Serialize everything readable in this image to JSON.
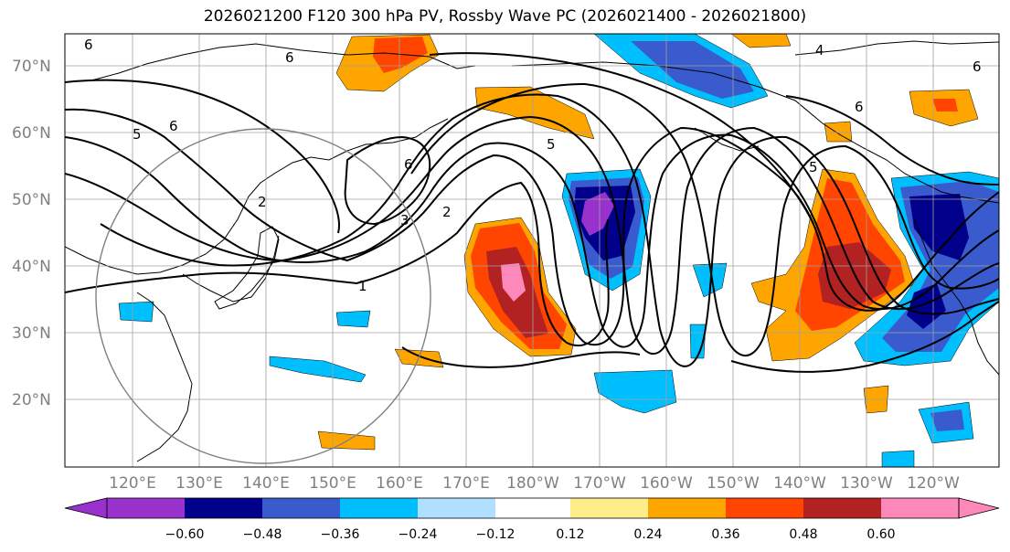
{
  "title": "2026021200 F120 300 hPa PV, Rossby Wave PC (2026021400 - 2026021800)",
  "map": {
    "lat_ticks": [
      "70°N",
      "60°N",
      "50°N",
      "40°N",
      "30°N",
      "20°N"
    ],
    "lon_ticks": [
      "120°E",
      "130°E",
      "140°E",
      "150°E",
      "160°E",
      "170°E",
      "180°W",
      "170°W",
      "160°W",
      "150°W",
      "140°W",
      "130°W",
      "120°W"
    ],
    "contour_labels": [
      "1",
      "2",
      "3",
      "4",
      "5",
      "6"
    ],
    "colors": {
      "coast": "#000000",
      "grid": "#a0a0a0",
      "contour": "#000000",
      "circle": "#808080"
    }
  },
  "colorbar": {
    "ticks": [
      "−0.60",
      "−0.48",
      "−0.36",
      "−0.24",
      "−0.12",
      "0.12",
      "0.24",
      "0.36",
      "0.48",
      "0.60"
    ],
    "colors": [
      "#9932cc",
      "#00008b",
      "#3a5bcd",
      "#00bfff",
      "#b0e0ff",
      "#ffffff",
      "#ffec8b",
      "#ffa500",
      "#ff4500",
      "#b22222",
      "#ff88bb"
    ]
  }
}
